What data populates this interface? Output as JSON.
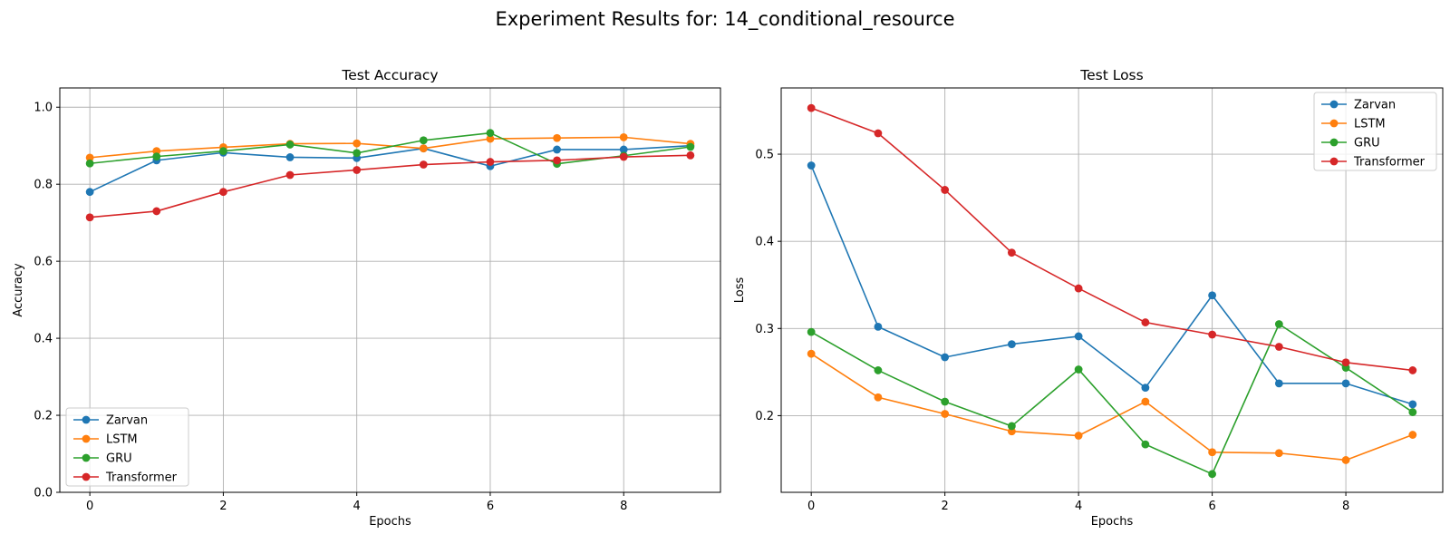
{
  "figure": {
    "suptitle": "Experiment Results for: 14_conditional_resource"
  },
  "colors": {
    "Zarvan": "#1f77b4",
    "LSTM": "#ff7f0e",
    "GRU": "#2ca02c",
    "Transformer": "#d62728"
  },
  "chart_data": [
    {
      "type": "line",
      "title": "Test Accuracy",
      "xlabel": "Epochs",
      "ylabel": "Accuracy",
      "x": [
        0,
        1,
        2,
        3,
        4,
        5,
        6,
        7,
        8,
        9
      ],
      "xlim": [
        -0.45,
        9.45
      ],
      "ylim": [
        0.0,
        1.05
      ],
      "xticks": [
        0,
        2,
        4,
        6,
        8
      ],
      "yticks": [
        0.0,
        0.2,
        0.4,
        0.6,
        0.8,
        1.0
      ],
      "ytick_labels": [
        "0.0",
        "0.2",
        "0.4",
        "0.6",
        "0.8",
        "1.0"
      ],
      "grid": true,
      "legend_position": "lower-left",
      "series": [
        {
          "name": "Zarvan",
          "values": [
            0.78,
            0.862,
            0.882,
            0.87,
            0.868,
            0.893,
            0.847,
            0.89,
            0.89,
            0.9
          ]
        },
        {
          "name": "LSTM",
          "values": [
            0.869,
            0.886,
            0.896,
            0.905,
            0.906,
            0.893,
            0.918,
            0.92,
            0.922,
            0.905
          ]
        },
        {
          "name": "GRU",
          "values": [
            0.854,
            0.872,
            0.886,
            0.903,
            0.881,
            0.914,
            0.933,
            0.853,
            0.874,
            0.897
          ]
        },
        {
          "name": "Transformer",
          "values": [
            0.714,
            0.73,
            0.78,
            0.824,
            0.837,
            0.851,
            0.858,
            0.862,
            0.871,
            0.875
          ]
        }
      ]
    },
    {
      "type": "line",
      "title": "Test Loss",
      "xlabel": "Epochs",
      "ylabel": "Loss",
      "x": [
        0,
        1,
        2,
        3,
        4,
        5,
        6,
        7,
        8,
        9
      ],
      "xlim": [
        -0.45,
        9.45
      ],
      "ylim": [
        0.112,
        0.576
      ],
      "xticks": [
        0,
        2,
        4,
        6,
        8
      ],
      "yticks": [
        0.2,
        0.3,
        0.4,
        0.5
      ],
      "ytick_labels": [
        "0.2",
        "0.3",
        "0.4",
        "0.5"
      ],
      "grid": true,
      "legend_position": "upper-right",
      "series": [
        {
          "name": "Zarvan",
          "values": [
            0.487,
            0.302,
            0.267,
            0.282,
            0.291,
            0.232,
            0.338,
            0.237,
            0.237,
            0.213
          ]
        },
        {
          "name": "LSTM",
          "values": [
            0.271,
            0.221,
            0.202,
            0.182,
            0.177,
            0.216,
            0.158,
            0.157,
            0.149,
            0.178
          ]
        },
        {
          "name": "GRU",
          "values": [
            0.296,
            0.252,
            0.216,
            0.188,
            0.253,
            0.167,
            0.133,
            0.305,
            0.255,
            0.204
          ]
        },
        {
          "name": "Transformer",
          "values": [
            0.553,
            0.524,
            0.459,
            0.387,
            0.346,
            0.307,
            0.293,
            0.279,
            0.261,
            0.252
          ]
        }
      ]
    }
  ]
}
